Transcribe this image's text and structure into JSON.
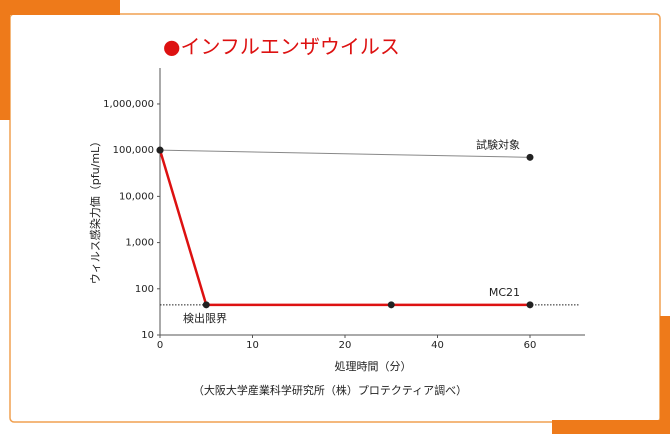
{
  "chart_data": {
    "type": "line",
    "title": "●インフルエンザウイルス",
    "x_label": "処理時間（分）",
    "y_label": "ウィルス感染力価（pfu/mL）",
    "footnote": "（大阪大学産業科学研究所（株）プロテクティア調べ）",
    "log_y": true,
    "ylim": [
      10,
      6000000
    ],
    "yticks": [
      10,
      100,
      {
        "value": 1000,
        "label": "1,000"
      },
      {
        "value": 10000,
        "label": "10,000"
      },
      {
        "value": 100000,
        "label": "100,000"
      },
      {
        "value": 1000000,
        "label": "1,000,000"
      }
    ],
    "xlim": [
      0,
      72
    ],
    "xticks": [
      0,
      10,
      20,
      40,
      60
    ],
    "marker_color": "#222222",
    "detection_limit": {
      "label": "検出限界",
      "value": 45
    },
    "series": [
      {
        "name": "試験対象",
        "color": "#888888",
        "x": [
          0,
          60
        ],
        "values": [
          100000,
          70000
        ]
      },
      {
        "name": "MC21",
        "color": "#dd1111",
        "x": [
          0,
          5,
          30,
          60
        ],
        "values": [
          100000,
          45,
          45,
          45
        ]
      }
    ]
  }
}
